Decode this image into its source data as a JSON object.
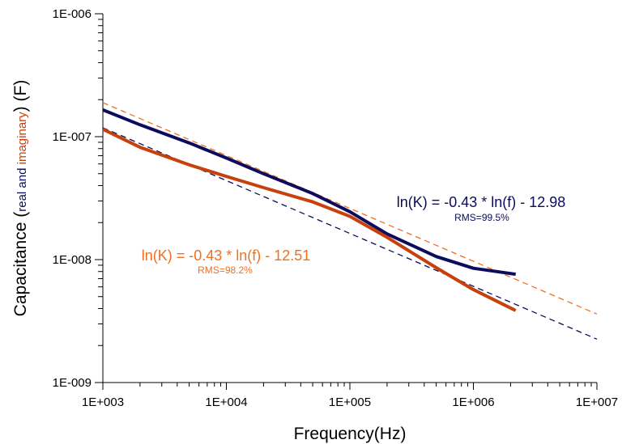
{
  "chart_data": {
    "type": "line",
    "title": "",
    "x_scale": "log",
    "y_scale": "log",
    "xlim": [
      1000,
      10000000
    ],
    "ylim": [
      1e-09,
      1e-06
    ],
    "xlabel": "Frequency(Hz)",
    "ylabel": {
      "prefix": "Capacitance (",
      "real": "real",
      "and": " and ",
      "imag": "imaginary",
      "suffix": ") (F)"
    },
    "x_ticks": [
      "1E+003",
      "1E+004",
      "1E+005",
      "1E+006",
      "1E+007"
    ],
    "y_ticks": [
      "1E-009",
      "1E-008",
      "1E-007",
      "1E-006"
    ],
    "grid": false,
    "series": [
      {
        "color": "#0c0c5e",
        "x": [
          1000,
          2000,
          5000,
          10000,
          20000,
          50000,
          100000,
          200000,
          500000,
          1000000,
          2200000
        ],
        "y": [
          1.65e-07,
          1.25e-07,
          8.9e-08,
          6.7e-08,
          5e-08,
          3.45e-08,
          2.45e-08,
          1.62e-08,
          1.06e-08,
          8.5e-09,
          7.6e-09
        ]
      },
      {
        "color": "#c8400c",
        "x": [
          1000,
          2000,
          5000,
          10000,
          20000,
          50000,
          100000,
          200000,
          500000,
          1000000,
          2200000
        ],
        "y": [
          1.15e-07,
          8.2e-08,
          5.9e-08,
          4.75e-08,
          3.85e-08,
          2.95e-08,
          2.25e-08,
          1.52e-08,
          8.6e-09,
          5.7e-09,
          3.85e-09
        ]
      }
    ],
    "fits": [
      {
        "color": "#0c0c5e",
        "intercept": -12.98,
        "slope": -0.43
      },
      {
        "color": "#f07020",
        "intercept": -12.51,
        "slope": -0.43
      }
    ],
    "annotations": [
      {
        "equation": "ln(K) = -0.43 * ln(f) - 12.98",
        "rms": "RMS=99.5%",
        "color": "#0c0c5e"
      },
      {
        "equation": "ln(K) = -0.43 * ln(f) - 12.51",
        "rms": "RMS=98.2%",
        "color": "#f07020"
      }
    ],
    "colors": {
      "real_label": "#0c0c5e",
      "imag_label": "#c8400c"
    }
  }
}
